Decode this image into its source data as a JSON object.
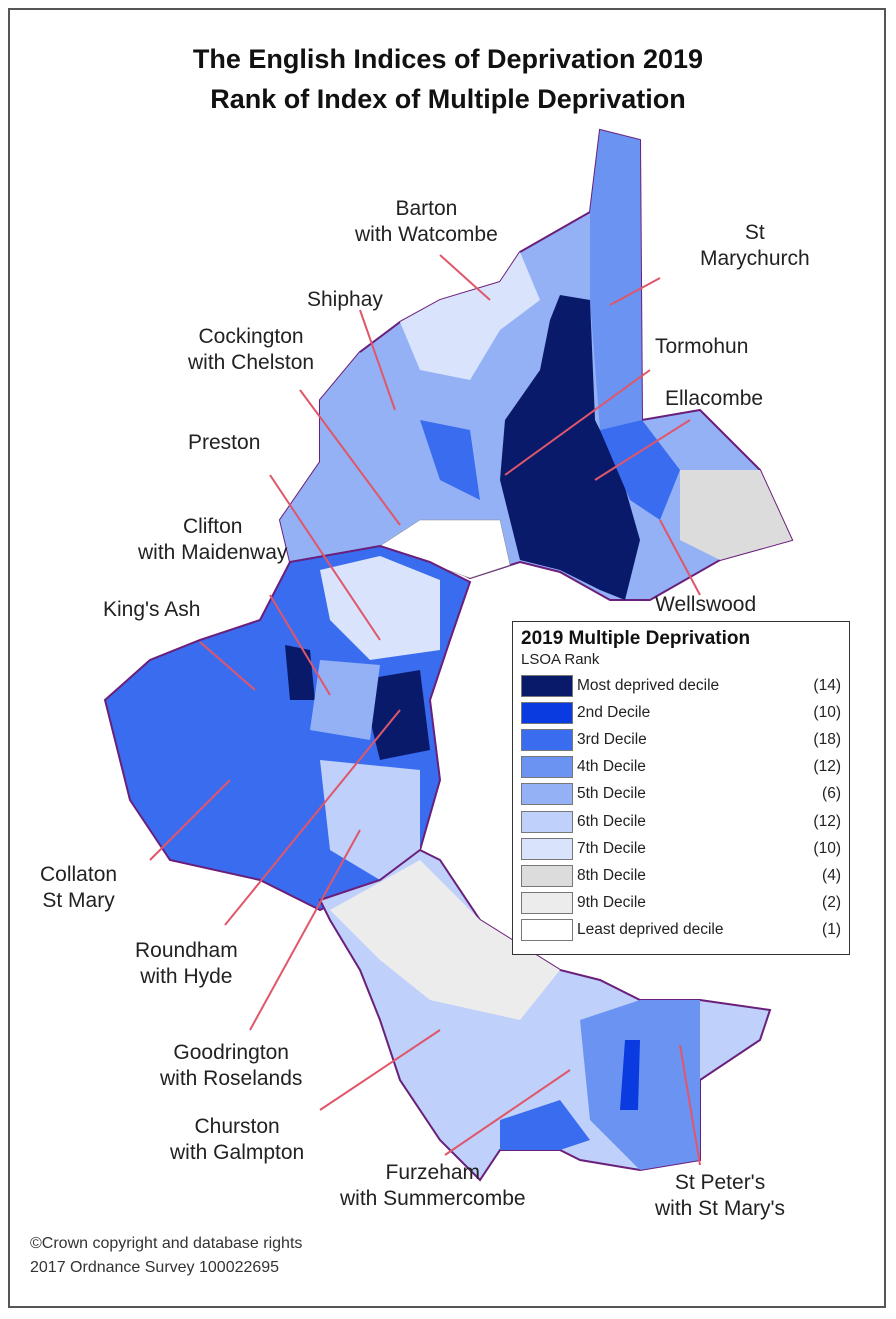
{
  "title_line1": "The English Indices of Deprivation 2019",
  "title_line2": "Rank of Index of Multiple Deprivation",
  "legend": {
    "title": "2019 Multiple Deprivation",
    "subtitle": "LSOA Rank",
    "items": [
      {
        "label": "Most deprived decile",
        "count": "(14)",
        "color": "#0a1a6b"
      },
      {
        "label": "2nd Decile",
        "count": "(10)",
        "color": "#0a3be0"
      },
      {
        "label": "3rd Decile",
        "count": "(18)",
        "color": "#3a6cf0"
      },
      {
        "label": "4th Decile",
        "count": "(12)",
        "color": "#6b93f2"
      },
      {
        "label": "5th Decile",
        "count": "(6)",
        "color": "#94b1f5"
      },
      {
        "label": "6th Decile",
        "count": "(12)",
        "color": "#bfd0fa"
      },
      {
        "label": "7th Decile",
        "count": "(10)",
        "color": "#d9e4fc"
      },
      {
        "label": "8th Decile",
        "count": "(4)",
        "color": "#dcdcdc"
      },
      {
        "label": "9th Decile",
        "count": "(2)",
        "color": "#ececec"
      },
      {
        "label": "Least deprived decile",
        "count": "(1)",
        "color": "#ffffff"
      }
    ]
  },
  "wards": {
    "barton": "Barton\nwith Watcombe",
    "st_marychurch": "St\nMarychurch",
    "shiphay": "Shiphay",
    "cockington": "Cockington\nwith Chelston",
    "tormohun": "Tormohun",
    "ellacombe": "Ellacombe",
    "preston": "Preston",
    "clifton": "Clifton\nwith Maidenway",
    "wellswood": "Wellswood",
    "kings_ash": "King's Ash",
    "collaton": "Collaton\nSt Mary",
    "roundham": "Roundham\nwith Hyde",
    "goodrington": "Goodrington\nwith Roselands",
    "churston": "Churston\nwith Galmpton",
    "furzeham": "Furzeham\nwith Summercombe",
    "st_peters": "St Peter's\nwith St Mary's"
  },
  "copyright_line1": "©Crown copyright and database rights",
  "copyright_line2": "2017  Ordnance Survey 100022695",
  "colors": {
    "ward_boundary": "#6a1f7a",
    "leader_line": "#e0566a"
  }
}
